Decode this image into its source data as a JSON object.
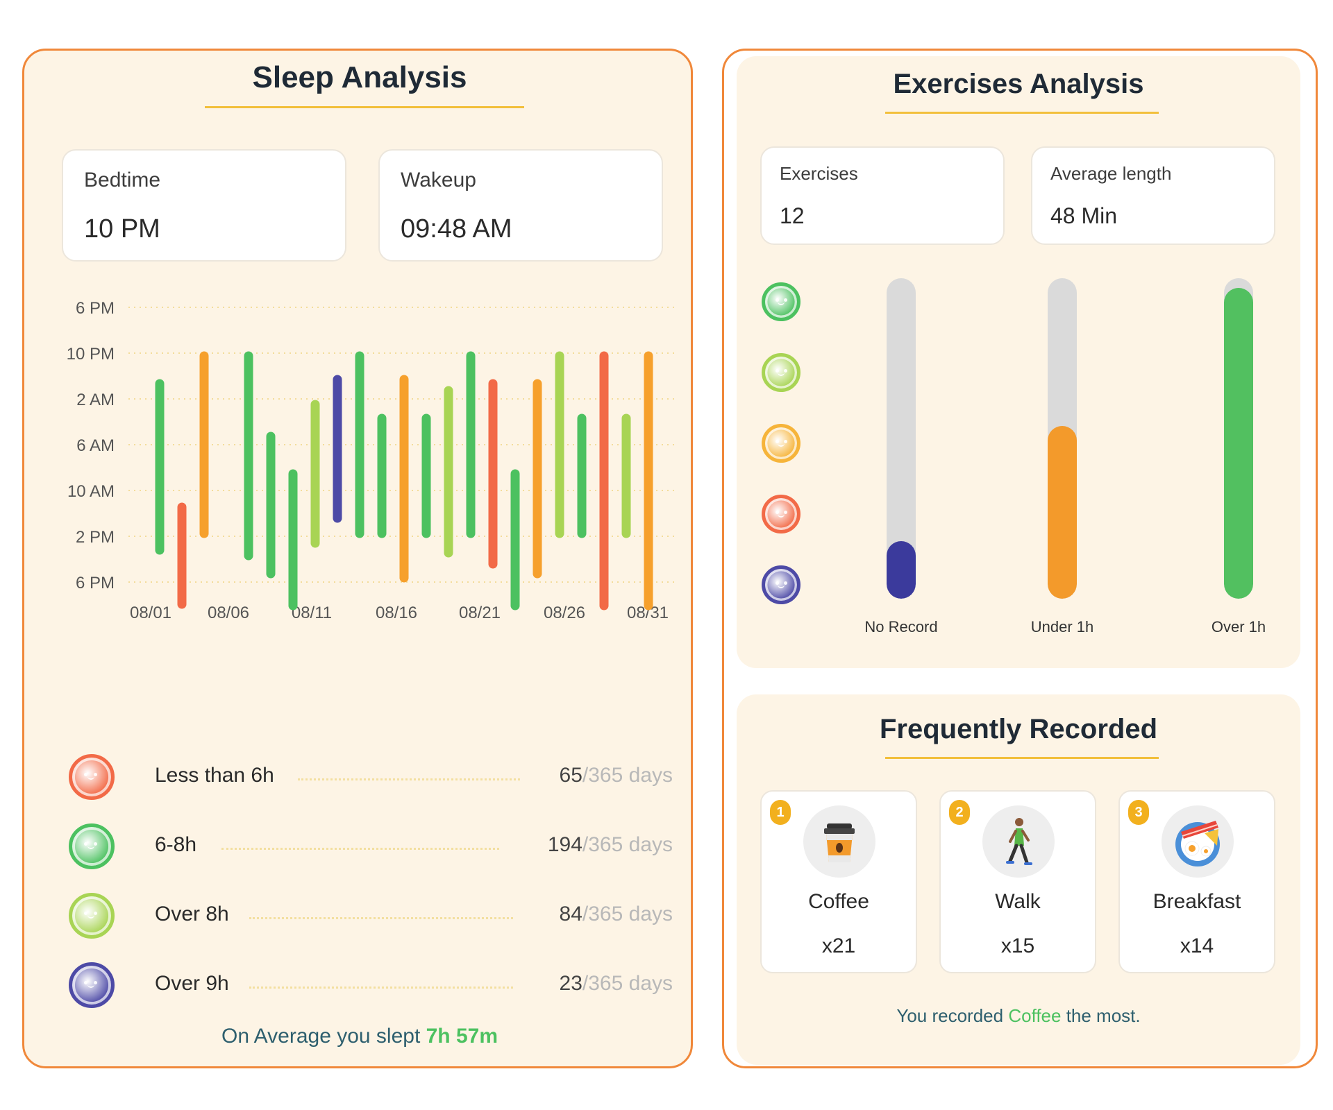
{
  "sleep": {
    "title": "Sleep Analysis",
    "bedtime": {
      "label": "Bedtime",
      "value": "10 PM"
    },
    "wakeup": {
      "label": "Wakeup",
      "value": "09:48 AM"
    },
    "chart": {
      "y_ticks": [
        "6 PM",
        "10 PM",
        "2 AM",
        "6 AM",
        "10 AM",
        "2 PM",
        "6 PM"
      ],
      "x_ticks": [
        "08/01",
        "08/06",
        "08/11",
        "08/16",
        "08/21",
        "08/26",
        "08/31"
      ],
      "colors": {
        "short": "#f26a47",
        "normal": "#4cc160",
        "long": "#a8d454",
        "very_long": "#4d4aa6",
        "orange": "#f6a02c"
      }
    },
    "legend": [
      {
        "label": "Less than 6h",
        "count": "65",
        "total": "/365 days",
        "color": "#f26a47"
      },
      {
        "label": "6-8h",
        "count": "194",
        "total": "/365 days",
        "color": "#4cc160"
      },
      {
        "label": "Over 8h",
        "count": "84",
        "total": "/365 days",
        "color": "#a8d454"
      },
      {
        "label": "Over 9h",
        "count": "23",
        "total": "/365 days",
        "color": "#4d4aa6"
      }
    ],
    "average": {
      "prefix": "On Average you slept ",
      "value": "7h 57m"
    }
  },
  "exercises": {
    "title": "Exercises Analysis",
    "count": {
      "label": "Exercises",
      "value": "12"
    },
    "avg_length": {
      "label": "Average length",
      "value": "48 Min"
    },
    "faces": [
      "#4cc160",
      "#a8d454",
      "#f6b43a",
      "#f26a47",
      "#4d4aa6"
    ],
    "bars": [
      {
        "label": "No Record",
        "fraction": 0.18,
        "color": "#3b3a9c"
      },
      {
        "label": "Under 1h",
        "fraction": 0.54,
        "color": "#f39a2b"
      },
      {
        "label": "Over 1h",
        "fraction": 0.97,
        "color": "#52c060"
      }
    ]
  },
  "frequent": {
    "title": "Frequently Recorded",
    "items": [
      {
        "rank": "1",
        "name": "Coffee",
        "count": "x21",
        "icon": "coffee-cup-icon"
      },
      {
        "rank": "2",
        "name": "Walk",
        "count": "x15",
        "icon": "walking-person-icon"
      },
      {
        "rank": "3",
        "name": "Breakfast",
        "count": "x14",
        "icon": "breakfast-plate-icon"
      }
    ],
    "summary": {
      "prefix": "You recorded ",
      "highlight": "Coffee",
      "suffix": " the most."
    }
  }
}
